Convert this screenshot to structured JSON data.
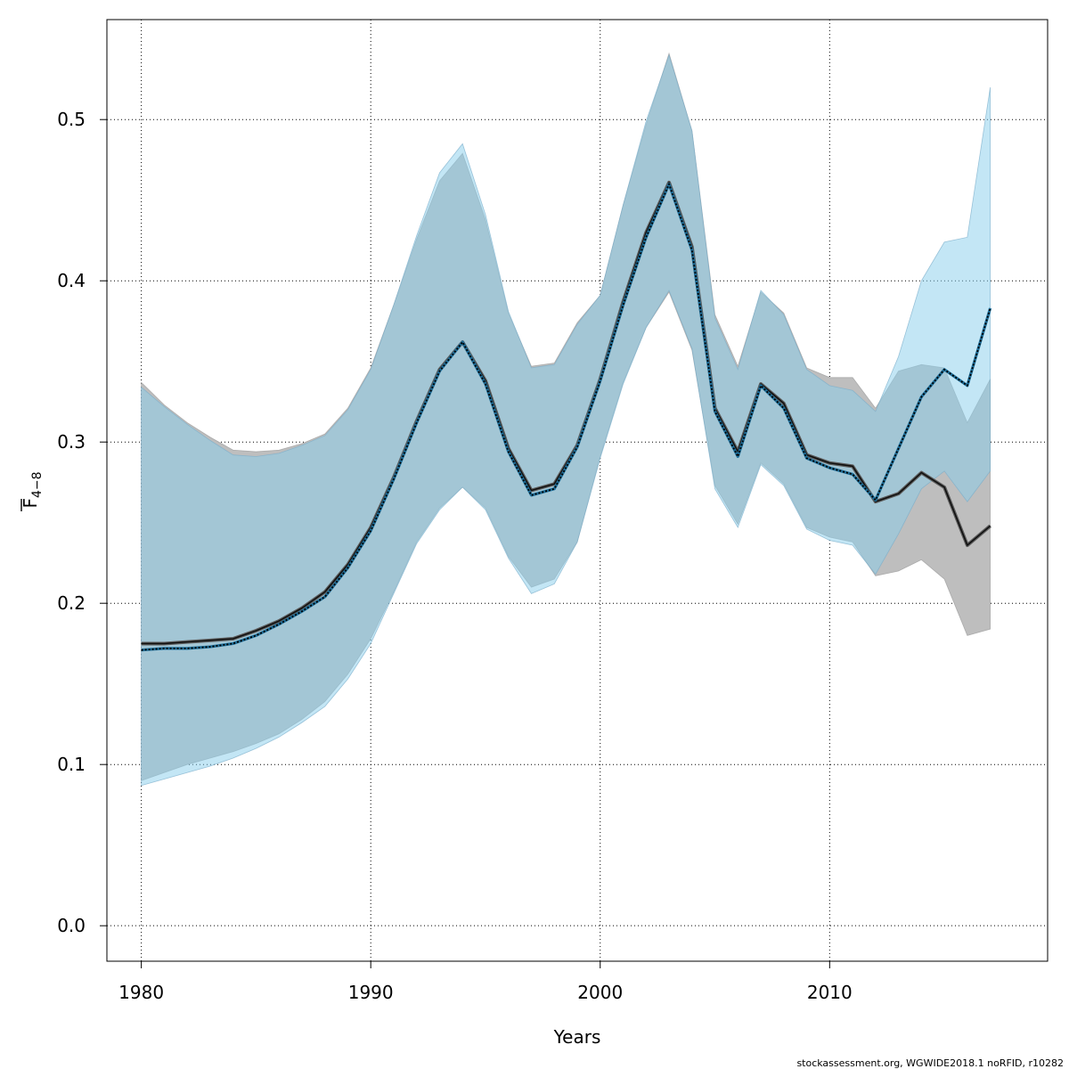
{
  "chart_data": {
    "type": "area",
    "xlabel": "Years",
    "ylabel_main": "F",
    "ylabel_sub": "4−8",
    "footer": "stockassessment.org, WGWIDE2018.1  noRFID, r10282",
    "xlim": [
      1978.5,
      2019.5
    ],
    "ylim": [
      -0.022,
      0.562
    ],
    "x_ticks": [
      1980,
      1990,
      2000,
      2010
    ],
    "y_ticks": [
      0.0,
      0.1,
      0.2,
      0.3,
      0.4,
      0.5
    ],
    "y_tick_labels": [
      "0.0",
      "0.1",
      "0.2",
      "0.3",
      "0.4",
      "0.5"
    ],
    "grid": true,
    "colors": {
      "grey_band": "#bebebe",
      "blue_band": "#87ceeb",
      "line": "#000000"
    },
    "x": [
      1980,
      1981,
      1982,
      1983,
      1984,
      1985,
      1986,
      1987,
      1988,
      1989,
      1990,
      1991,
      1992,
      1993,
      1994,
      1995,
      1996,
      1997,
      1998,
      1999,
      2000,
      2001,
      2002,
      2003,
      2004,
      2005,
      2006,
      2007,
      2008,
      2009,
      2010,
      2011,
      2012,
      2013,
      2014,
      2015,
      2016,
      2017
    ],
    "series": [
      {
        "style": "grey",
        "estimate": [
          0.175,
          0.175,
          0.176,
          0.177,
          0.178,
          0.183,
          0.189,
          0.197,
          0.207,
          0.224,
          0.247,
          0.278,
          0.313,
          0.345,
          0.362,
          0.338,
          0.296,
          0.27,
          0.274,
          0.298,
          0.339,
          0.387,
          0.43,
          0.461,
          0.421,
          0.321,
          0.294,
          0.336,
          0.324,
          0.292,
          0.287,
          0.285,
          0.263,
          0.268,
          0.281,
          0.272,
          0.236,
          0.248
        ],
        "lower": [
          0.09,
          0.095,
          0.1,
          0.104,
          0.108,
          0.113,
          0.119,
          0.128,
          0.139,
          0.156,
          0.178,
          0.207,
          0.238,
          0.259,
          0.272,
          0.259,
          0.229,
          0.21,
          0.215,
          0.238,
          0.291,
          0.337,
          0.371,
          0.393,
          0.357,
          0.273,
          0.249,
          0.287,
          0.274,
          0.247,
          0.241,
          0.238,
          0.217,
          0.22,
          0.227,
          0.215,
          0.18,
          0.184
        ],
        "upper": [
          0.337,
          0.323,
          0.312,
          0.303,
          0.295,
          0.294,
          0.295,
          0.299,
          0.305,
          0.321,
          0.346,
          0.385,
          0.426,
          0.462,
          0.479,
          0.438,
          0.38,
          0.347,
          0.349,
          0.374,
          0.391,
          0.447,
          0.497,
          0.541,
          0.493,
          0.379,
          0.347,
          0.393,
          0.38,
          0.346,
          0.34,
          0.34,
          0.321,
          0.344,
          0.348,
          0.346,
          0.312,
          0.339
        ]
      },
      {
        "style": "blue",
        "estimate": [
          0.171,
          0.172,
          0.172,
          0.173,
          0.175,
          0.18,
          0.187,
          0.195,
          0.204,
          0.222,
          0.245,
          0.277,
          0.312,
          0.344,
          0.362,
          0.336,
          0.294,
          0.267,
          0.271,
          0.297,
          0.338,
          0.385,
          0.427,
          0.46,
          0.419,
          0.319,
          0.291,
          0.335,
          0.321,
          0.29,
          0.284,
          0.28,
          0.264,
          0.296,
          0.328,
          0.345,
          0.335,
          0.383
        ],
        "lower": [
          0.087,
          0.091,
          0.095,
          0.099,
          0.104,
          0.11,
          0.117,
          0.126,
          0.136,
          0.153,
          0.175,
          0.206,
          0.237,
          0.258,
          0.272,
          0.258,
          0.228,
          0.206,
          0.212,
          0.238,
          0.29,
          0.336,
          0.371,
          0.394,
          0.358,
          0.271,
          0.247,
          0.286,
          0.273,
          0.246,
          0.239,
          0.236,
          0.218,
          0.243,
          0.271,
          0.282,
          0.263,
          0.282
        ],
        "upper": [
          0.334,
          0.322,
          0.311,
          0.301,
          0.292,
          0.291,
          0.293,
          0.298,
          0.304,
          0.32,
          0.345,
          0.385,
          0.428,
          0.467,
          0.485,
          0.441,
          0.381,
          0.346,
          0.348,
          0.373,
          0.391,
          0.447,
          0.499,
          0.54,
          0.493,
          0.377,
          0.345,
          0.394,
          0.379,
          0.345,
          0.335,
          0.332,
          0.319,
          0.353,
          0.4,
          0.424,
          0.427,
          0.52
        ]
      }
    ]
  }
}
